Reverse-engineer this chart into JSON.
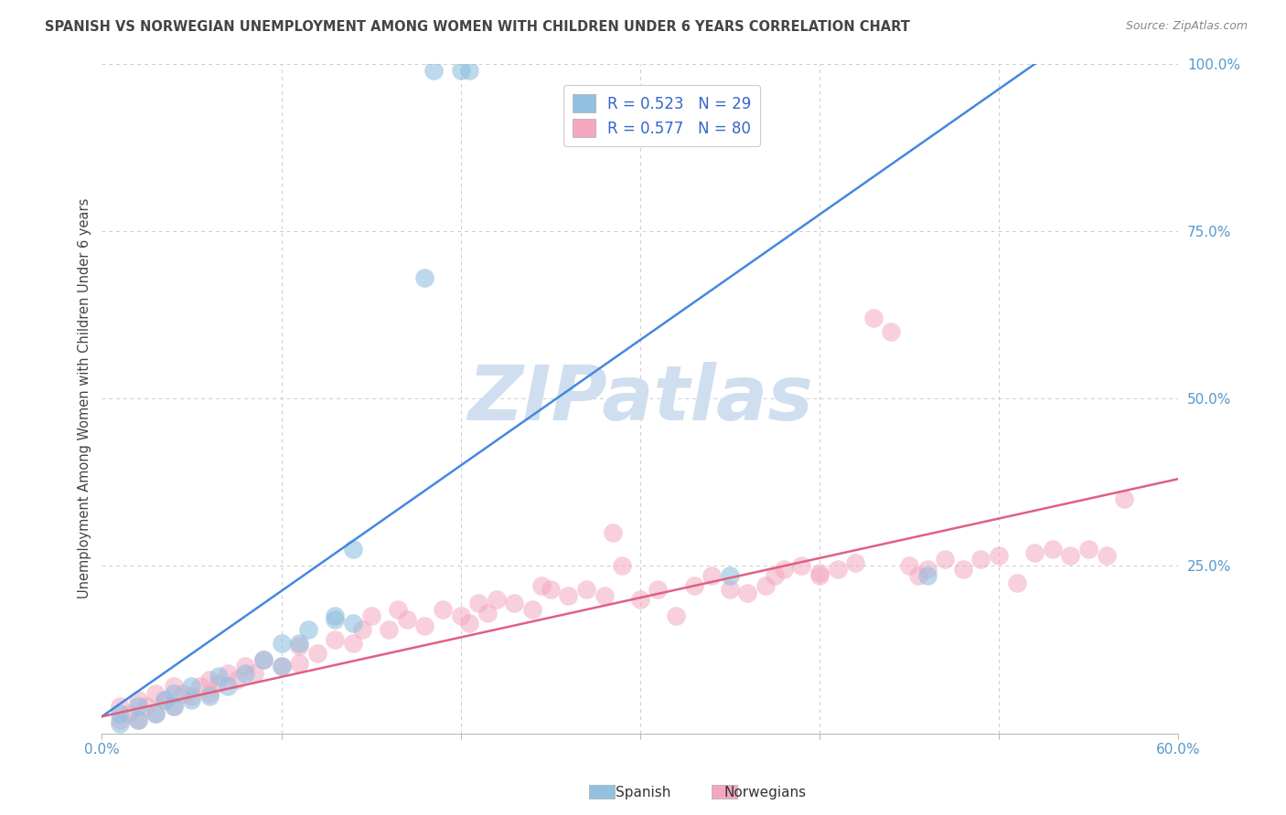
{
  "title": "SPANISH VS NORWEGIAN UNEMPLOYMENT AMONG WOMEN WITH CHILDREN UNDER 6 YEARS CORRELATION CHART",
  "source": "Source: ZipAtlas.com",
  "ylabel": "Unemployment Among Women with Children Under 6 years",
  "xlim": [
    0.0,
    0.6
  ],
  "ylim": [
    0.0,
    1.0
  ],
  "spanish_R": 0.523,
  "spanish_N": 29,
  "norwegian_R": 0.577,
  "norwegian_N": 80,
  "spanish_color": "#92c0e0",
  "norwegian_color": "#f4a8c0",
  "spanish_line_color": "#4488dd",
  "norwegian_line_color": "#e06080",
  "title_color": "#444444",
  "source_color": "#888888",
  "axis_color": "#5599cc",
  "legend_label_color": "#3366cc",
  "background_color": "#ffffff",
  "grid_color": "#cccccc",
  "watermark_color": "#d0dff0",
  "watermark": "ZIPatlas",
  "sp_line_x0": 0.0,
  "sp_line_y0": 0.025,
  "sp_line_x1": 0.52,
  "sp_line_y1": 1.0,
  "nor_line_x0": 0.0,
  "nor_line_y0": 0.025,
  "nor_line_x1": 0.6,
  "nor_line_y1": 0.38,
  "spanish_x": [
    0.01,
    0.01,
    0.02,
    0.02,
    0.03,
    0.035,
    0.04,
    0.04,
    0.05,
    0.05,
    0.06,
    0.065,
    0.07,
    0.08,
    0.09,
    0.1,
    0.1,
    0.11,
    0.115,
    0.13,
    0.13,
    0.14,
    0.14,
    0.18,
    0.185,
    0.2,
    0.205,
    0.35,
    0.46
  ],
  "spanish_y": [
    0.015,
    0.03,
    0.02,
    0.04,
    0.03,
    0.05,
    0.04,
    0.06,
    0.05,
    0.07,
    0.055,
    0.085,
    0.07,
    0.09,
    0.11,
    0.1,
    0.135,
    0.135,
    0.155,
    0.17,
    0.175,
    0.165,
    0.275,
    0.68,
    0.99,
    0.99,
    0.99,
    0.235,
    0.235
  ],
  "norwegian_x": [
    0.01,
    0.01,
    0.015,
    0.02,
    0.02,
    0.025,
    0.03,
    0.03,
    0.035,
    0.04,
    0.04,
    0.045,
    0.05,
    0.055,
    0.06,
    0.06,
    0.065,
    0.07,
    0.075,
    0.08,
    0.085,
    0.09,
    0.1,
    0.11,
    0.11,
    0.12,
    0.13,
    0.14,
    0.145,
    0.15,
    0.16,
    0.165,
    0.17,
    0.18,
    0.19,
    0.2,
    0.205,
    0.21,
    0.215,
    0.22,
    0.23,
    0.24,
    0.245,
    0.25,
    0.26,
    0.27,
    0.28,
    0.285,
    0.29,
    0.3,
    0.31,
    0.32,
    0.33,
    0.34,
    0.35,
    0.36,
    0.37,
    0.375,
    0.38,
    0.39,
    0.4,
    0.4,
    0.41,
    0.42,
    0.43,
    0.44,
    0.45,
    0.455,
    0.46,
    0.47,
    0.48,
    0.49,
    0.5,
    0.51,
    0.52,
    0.53,
    0.54,
    0.55,
    0.56,
    0.57
  ],
  "norwegian_y": [
    0.02,
    0.04,
    0.03,
    0.02,
    0.05,
    0.04,
    0.03,
    0.06,
    0.05,
    0.04,
    0.07,
    0.06,
    0.055,
    0.07,
    0.06,
    0.08,
    0.075,
    0.09,
    0.08,
    0.1,
    0.09,
    0.11,
    0.1,
    0.105,
    0.13,
    0.12,
    0.14,
    0.135,
    0.155,
    0.175,
    0.155,
    0.185,
    0.17,
    0.16,
    0.185,
    0.175,
    0.165,
    0.195,
    0.18,
    0.2,
    0.195,
    0.185,
    0.22,
    0.215,
    0.205,
    0.215,
    0.205,
    0.3,
    0.25,
    0.2,
    0.215,
    0.175,
    0.22,
    0.235,
    0.215,
    0.21,
    0.22,
    0.235,
    0.245,
    0.25,
    0.24,
    0.235,
    0.245,
    0.255,
    0.62,
    0.6,
    0.25,
    0.235,
    0.245,
    0.26,
    0.245,
    0.26,
    0.265,
    0.225,
    0.27,
    0.275,
    0.265,
    0.275,
    0.265,
    0.35
  ]
}
